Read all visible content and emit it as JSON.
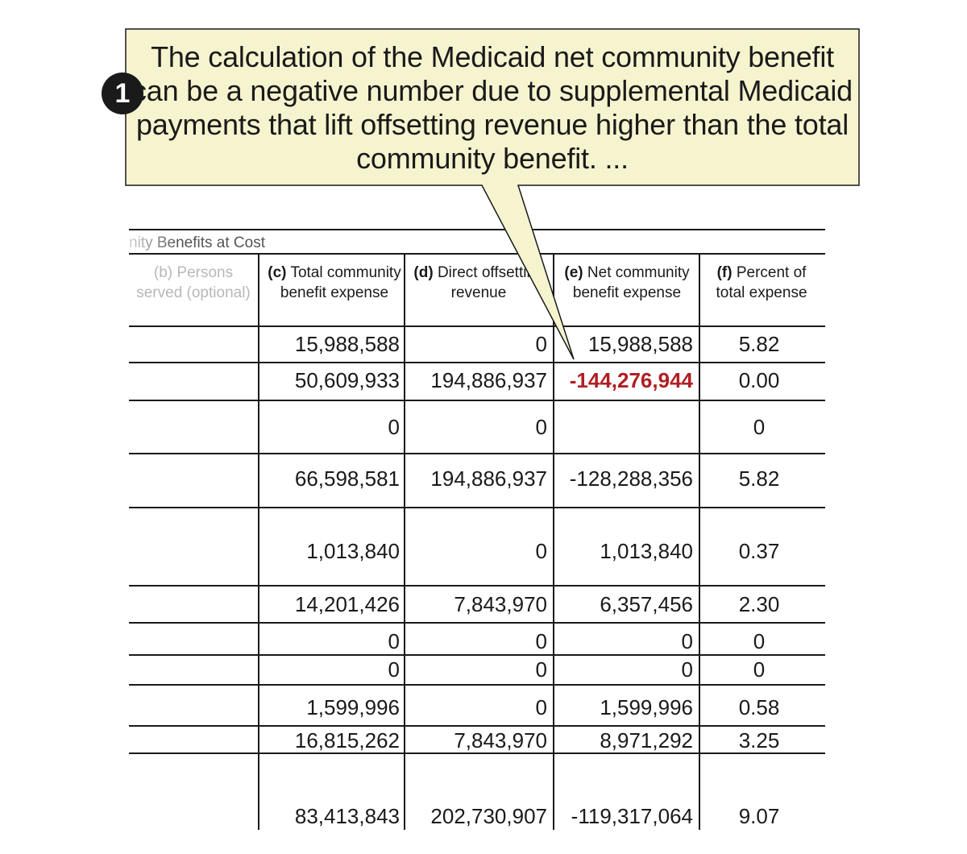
{
  "callout": {
    "badge": "1",
    "text": "The calculation of the Medicaid net community benefit can be a negative number due to supplemental Medicaid payments that lift offsetting revenue higher than the total community benefit. ..."
  },
  "form": {
    "section_title": "nity Benefits at Cost",
    "columns": [
      {
        "letter": "(b)",
        "label": "Persons served (optional)"
      },
      {
        "letter": "(c)",
        "label": "Total community benefit expense"
      },
      {
        "letter": "(d)",
        "label": "Direct offsetting revenue"
      },
      {
        "letter": "(e)",
        "label": "Net community benefit expense"
      },
      {
        "letter": "(f)",
        "label": "Percent of total expense"
      }
    ],
    "rows": [
      {
        "c": "15,988,588",
        "d": "0",
        "e": "15,988,588",
        "f": "5.82"
      },
      {
        "c": "50,609,933",
        "d": "194,886,937",
        "e": "-144,276,944",
        "f": "0.00"
      },
      {
        "c": "0",
        "d": "0",
        "e": "",
        "f": "0"
      },
      {
        "c": "66,598,581",
        "d": "194,886,937",
        "e": "-128,288,356",
        "f": "5.82"
      },
      {
        "c": "1,013,840",
        "d": "0",
        "e": "1,013,840",
        "f": "0.37"
      },
      {
        "c": "14,201,426",
        "d": "7,843,970",
        "e": "6,357,456",
        "f": "2.30"
      },
      {
        "c": "0",
        "d": "0",
        "e": "0",
        "f": "0"
      },
      {
        "c": "0",
        "d": "0",
        "e": "0",
        "f": "0"
      },
      {
        "c": "1,599,996",
        "d": "0",
        "e": "1,599,996",
        "f": "0.58"
      },
      {
        "c": "16,815,262",
        "d": "7,843,970",
        "e": "8,971,292",
        "f": "3.25"
      },
      {
        "c": "83,413,843",
        "d": "202,730,907",
        "e": "-119,317,064",
        "f": "9.07"
      }
    ]
  },
  "colors": {
    "callout_fill": "#f6f4cf",
    "highlight_red": "#b01e23",
    "ink": "#1a1a1a"
  }
}
